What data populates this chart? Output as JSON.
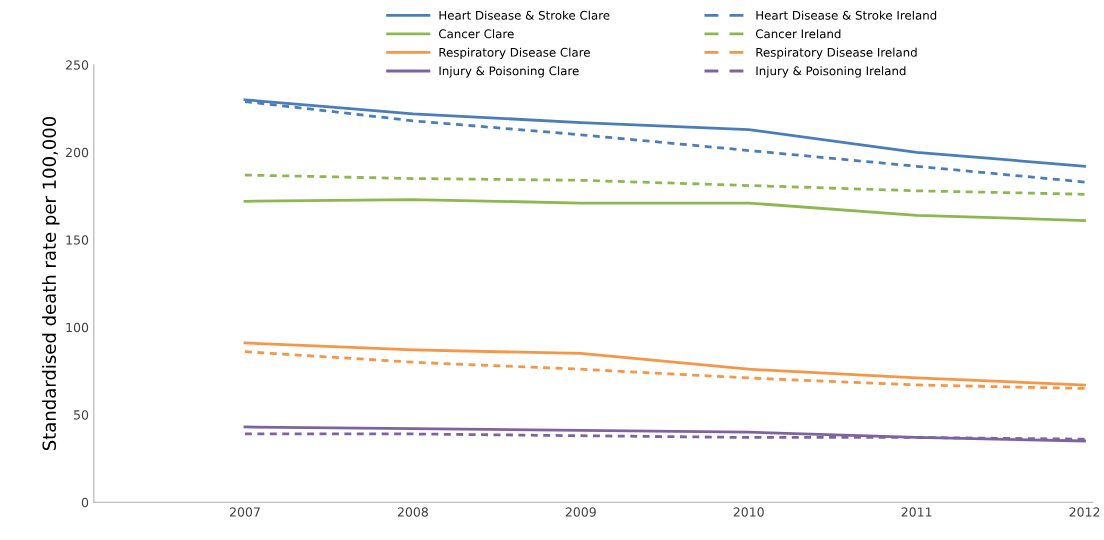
{
  "chart_data": {
    "type": "line",
    "ylabel": "Standardised death rate per 100,000",
    "categories": [
      "2007",
      "2008",
      "2009",
      "2010",
      "2011",
      "2012"
    ],
    "series": [
      {
        "name": "Heart Disease & Stroke Clare",
        "color": "#4a7ebb",
        "line_style": "solid",
        "values": [
          230,
          222,
          217,
          213,
          200,
          192
        ]
      },
      {
        "name": "Heart Disease & Stroke Ireland",
        "color": "#4a7ebb",
        "line_style": "dashed",
        "values": [
          229,
          218,
          210,
          201,
          192,
          183
        ]
      },
      {
        "name": "Cancer Clare",
        "color": "#8cb94f",
        "line_style": "solid",
        "values": [
          172,
          173,
          171,
          171,
          164,
          161
        ]
      },
      {
        "name": "Cancer Ireland",
        "color": "#8cb94f",
        "line_style": "dashed",
        "values": [
          187,
          185,
          184,
          181,
          178,
          176
        ]
      },
      {
        "name": "Respiratory Disease Clare",
        "color": "#f79646",
        "line_style": "solid",
        "values": [
          91,
          87,
          85,
          76,
          71,
          67
        ]
      },
      {
        "name": "Respiratory Disease Ireland",
        "color": "#f79646",
        "line_style": "dashed",
        "values": [
          86,
          80,
          76,
          71,
          67,
          65
        ]
      },
      {
        "name": "Injury & Poisoning Clare",
        "color": "#7f63a1",
        "line_style": "solid",
        "values": [
          43,
          42,
          41,
          40,
          37,
          35
        ]
      },
      {
        "name": "Injury & Poisoning Ireland",
        "color": "#7f63a1",
        "line_style": "dashed",
        "values": [
          39,
          39,
          38,
          37,
          37,
          36
        ]
      }
    ],
    "ylim": [
      0,
      250
    ],
    "yticks": [
      0,
      50,
      100,
      150,
      200,
      250
    ],
    "grid": false,
    "legend": "top",
    "marker": "none"
  }
}
